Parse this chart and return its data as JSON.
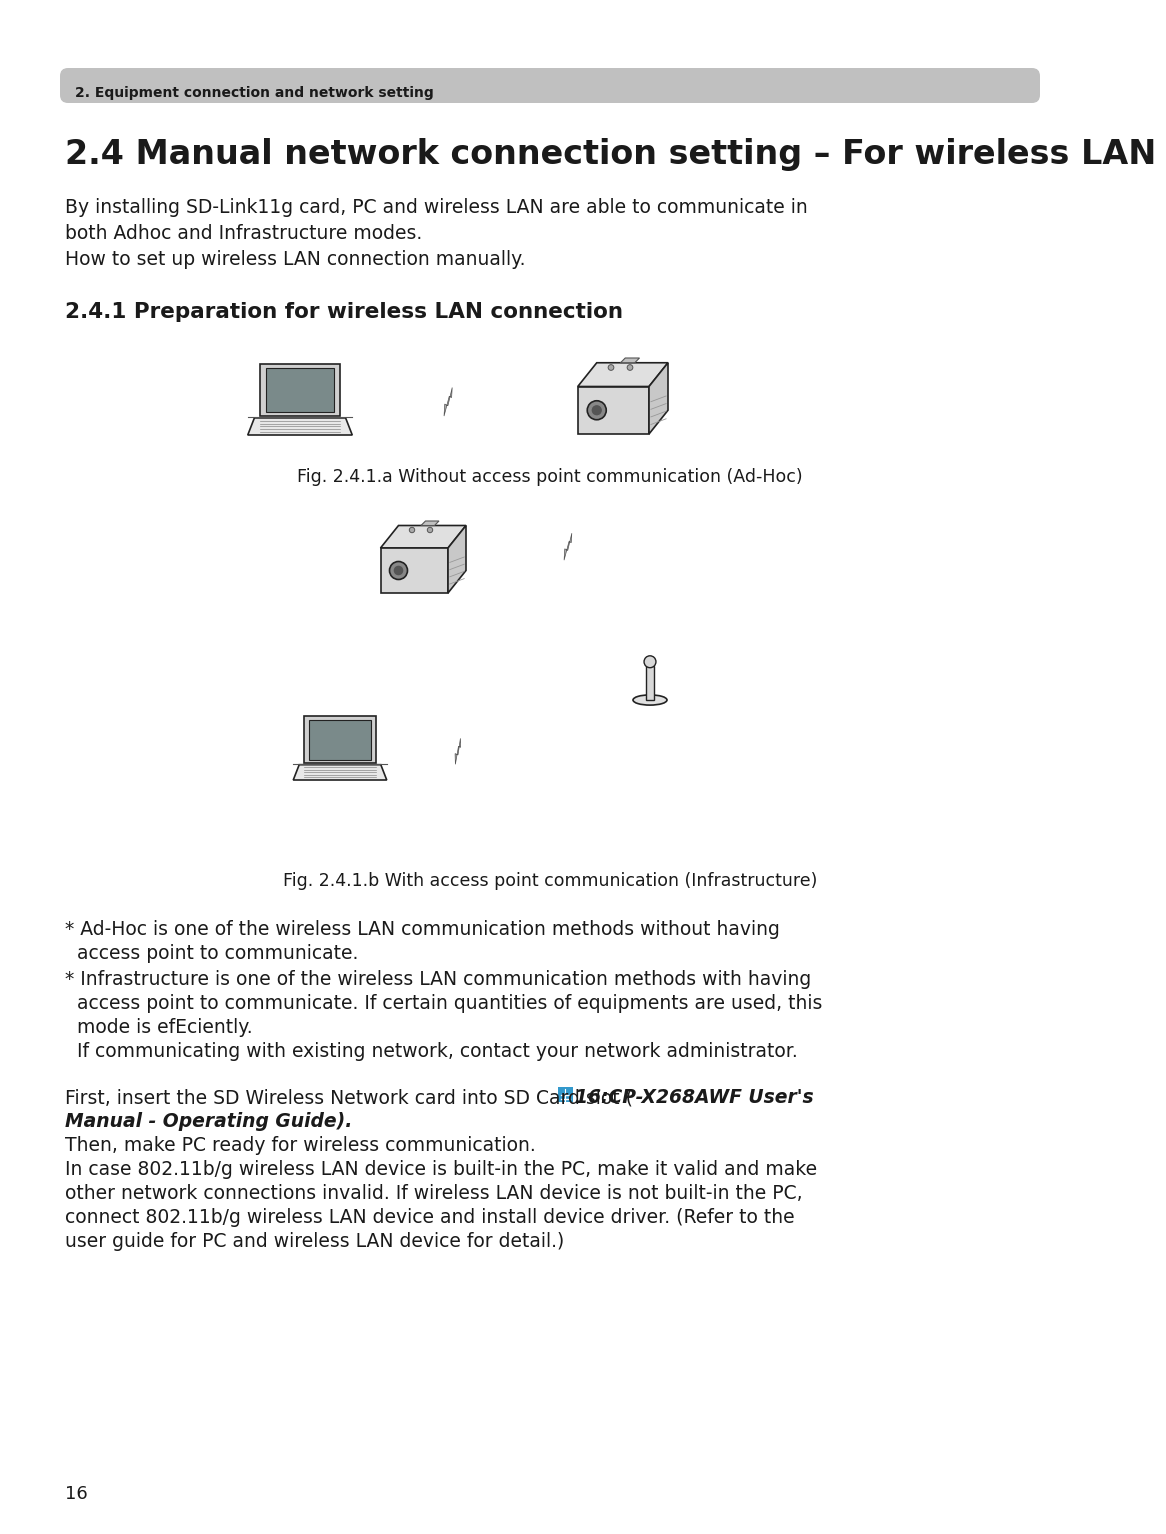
{
  "page_bg": "#ffffff",
  "header_bg": "#c0c0c0",
  "header_text": "2. Equipment connection and network setting",
  "header_text_color": "#1a1a1a",
  "title": "2.4 Manual network connection setting – For wireless LAN",
  "title_color": "#1a1a1a",
  "subtitle": "2.4.1 Preparation for wireless LAN connection",
  "subtitle_color": "#1a1a1a",
  "body_color": "#1a1a1a",
  "page_number": "16",
  "para1_l1": "By installing SD-Link11g card, PC and wireless LAN are able to communicate in",
  "para1_l2": "both Adhoc and Infrastructure modes.",
  "para1_l3": "How to set up wireless LAN connection manually.",
  "fig1_caption": "Fig. 2.4.1.a Without access point communication (Ad-Hoc)",
  "fig2_caption": "Fig. 2.4.1.b With access point communication (Infrastructure)",
  "note1_l1": "* Ad-Hoc is one of the wireless LAN communication methods without having",
  "note1_l2": "  access point to communicate.",
  "note2_l1": "* Infrastructure is one of the wireless LAN communication methods with having",
  "note2_l2": "  access point to communicate. If certain quantities of equipments are used, this",
  "note2_l3": "  mode is efEciently.",
  "note2_l4": "  If communicating with existing network, contact your network administrator.",
  "para2_normal": "First, insert the SD Wireless Network card into SD Card slot ( ",
  "para2_bold": "16:CP-X268AWF User's",
  "para2_bold2": "Manual - Operating Guide",
  "para2_close": ").",
  "para2_l2": "Then, make PC ready for wireless communication.",
  "para2_l3": "In case 802.11b/g wireless LAN device is built-in the PC, make it valid and make",
  "para2_l4": "other network connections invalid. If wireless LAN device is not built-in the PC,",
  "para2_l5": "connect 802.11b/g wireless LAN device and install device driver. (Refer to the",
  "para2_l6": "user guide for PC and wireless LAN device for detail.)"
}
